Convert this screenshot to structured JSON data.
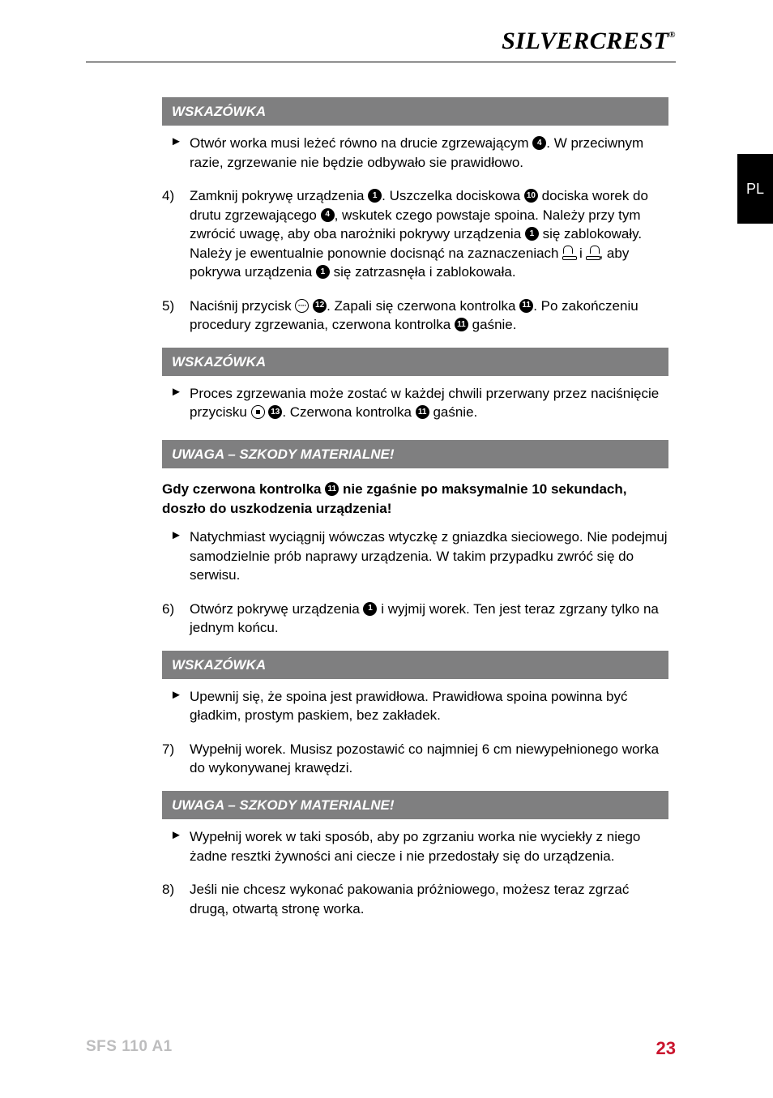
{
  "logo": {
    "part1": "SILVER",
    "part2": "CREST",
    "reg": "®"
  },
  "side_tab": "PL",
  "footer": {
    "model": "SFS 110 A1",
    "page": "23"
  },
  "circles": {
    "c1": "1",
    "c4": "4",
    "c10": "10",
    "c11": "11",
    "c12": "12",
    "c13": "13",
    "oval": "····"
  },
  "hint1": {
    "header": "WSKAZÓWKA",
    "b1": "Otwór worka musi leżeć równo na drucie zgrzewającym ",
    "b1b": ". W przeciwnym razie, zgrzewanie nie będzie odbywało sie prawidłowo."
  },
  "step4": {
    "num": "4)",
    "t1": "Zamknij pokrywę urządzenia ",
    "t2": ". Uszczelka dociskowa ",
    "t3": " dociska worek do drutu zgrzewającego ",
    "t4": ", wskutek czego powstaje spoina. Należy przy tym zwrócić uwagę, aby oba narożniki pokrywy urządzenia ",
    "t5": " się zablokowały. Należy je ewentualnie ponownie docisnąć na zaznaczeniach ",
    "t6": "  i  ",
    "t7": ", aby pokrywa urządzenia ",
    "t8": " się zatrzasnęła i zablokowała."
  },
  "step5": {
    "num": "5)",
    "t1": "Naciśnij przycisk ",
    "t2": " ",
    "t3": ". Zapali się czerwona kontrolka ",
    "t4": ". Po zakończeniu procedury zgrzewania, czerwona kontrolka ",
    "t5": " gaśnie."
  },
  "hint2": {
    "header": "WSKAZÓWKA",
    "b1": "Proces zgrzewania może zostać w każdej chwili przerwany przez naciśnięcie przycisku ",
    "b2": " ",
    "b3": ". Czerwona kontrolka ",
    "b4": " gaśnie."
  },
  "warn1": {
    "header": "UWAGA – SZKODY MATERIALNE!",
    "title1": "Gdy czerwona kontrolka ",
    "title2": " nie zgaśnie po maksymalnie 10 sekundach, doszło do uszkodzenia urządzenia!",
    "b1": "Natychmiast wyciągnij wówczas wtyczkę z gniazdka sieciowego. Nie podejmuj samodzielnie prób naprawy urządzenia. W takim przypadku zwróć się do serwisu."
  },
  "step6": {
    "num": "6)",
    "t1": "Otwórz pokrywę urządzenia ",
    "t2": " i wyjmij worek. Ten jest teraz zgrzany tylko na jednym końcu."
  },
  "hint3": {
    "header": "WSKAZÓWKA",
    "b1": "Upewnij się, że spoina jest prawidłowa. Prawidłowa spoina powinna być gładkim, prostym paskiem, bez zakładek."
  },
  "step7": {
    "num": "7)",
    "t1": "Wypełnij worek. Musisz pozostawić co najmniej 6 cm niewypełnionego worka do wykonywanej krawędzi."
  },
  "warn2": {
    "header": "UWAGA – SZKODY MATERIALNE!",
    "b1": "Wypełnij worek w taki sposób, aby po zgrzaniu worka nie wyciekły z niego żadne resztki żywności ani ciecze i nie przedostały się do urządzenia."
  },
  "step8": {
    "num": "8)",
    "t1": "Jeśli nie chcesz wykonać pakowania próżniowego, możesz teraz zgrzać drugą, otwartą stronę worka."
  }
}
